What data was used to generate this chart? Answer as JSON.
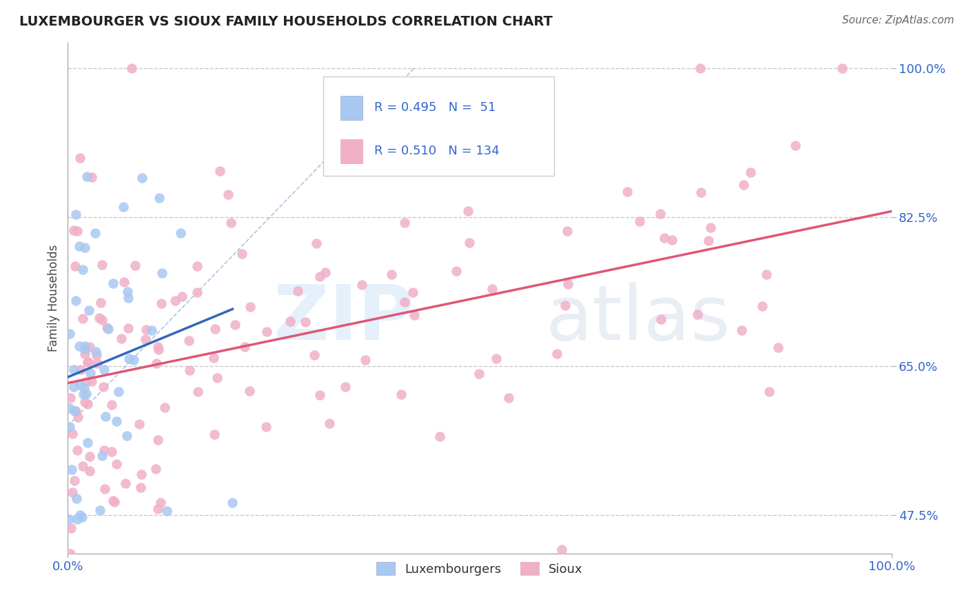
{
  "title": "LUXEMBOURGER VS SIOUX FAMILY HOUSEHOLDS CORRELATION CHART",
  "source": "Source: ZipAtlas.com",
  "ylabel": "Family Households",
  "xlim": [
    0.0,
    100.0
  ],
  "ylim": [
    43.0,
    103.0
  ],
  "xticks": [
    0.0,
    100.0
  ],
  "xticklabels": [
    "0.0%",
    "100.0%"
  ],
  "yticks": [
    47.5,
    65.0,
    82.5,
    100.0
  ],
  "yticklabels": [
    "47.5%",
    "65.0%",
    "82.5%",
    "100.0%"
  ],
  "grid_color": "#c8c8c8",
  "background_color": "#ffffff",
  "lux_color": "#a8c8f0",
  "sioux_color": "#f0b0c8",
  "lux_line_color": "#3366bb",
  "sioux_line_color": "#e05575",
  "ref_line_color": "#88aadd",
  "lux_R": 0.495,
  "lux_N": 51,
  "sioux_R": 0.51,
  "sioux_N": 134,
  "legend_label_lux": "Luxembourgers",
  "legend_label_sioux": "Sioux",
  "tick_color": "#3366cc",
  "title_color": "#222222",
  "source_color": "#666666",
  "ylabel_color": "#444444"
}
